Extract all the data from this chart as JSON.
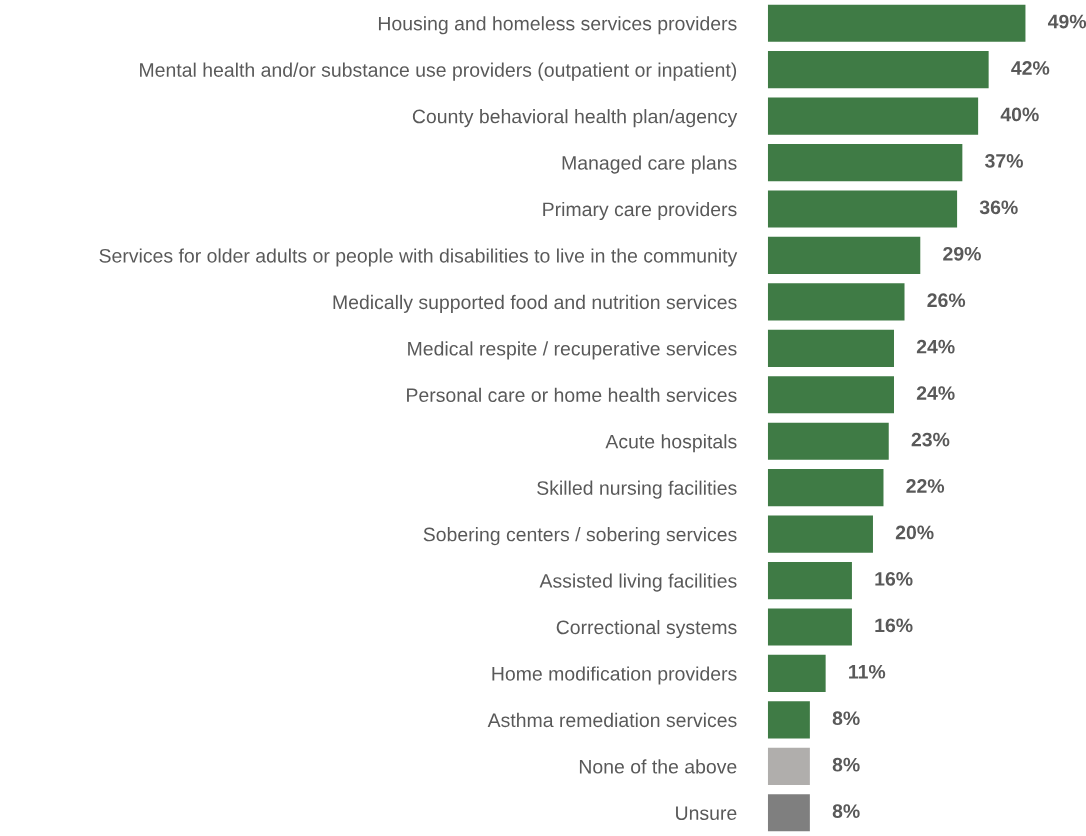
{
  "chart_data": {
    "type": "bar",
    "orientation": "horizontal",
    "categories": [
      "Housing and homeless services providers",
      "Mental health and/or substance use providers (outpatient or inpatient)",
      "County behavioral health plan/agency",
      "Managed care plans",
      "Primary care providers",
      "Services for older adults or people with disabilities to live in the community",
      "Medically supported food and nutrition services",
      "Medical respite / recuperative services",
      "Personal care or home health services",
      "Acute hospitals",
      "Skilled nursing facilities",
      "Sobering centers / sobering services",
      "Assisted living facilities",
      "Correctional systems",
      "Home modification providers",
      "Asthma remediation services",
      "None of the above",
      "Unsure"
    ],
    "values": [
      49,
      42,
      40,
      37,
      36,
      29,
      26,
      24,
      24,
      23,
      22,
      20,
      16,
      16,
      11,
      8,
      8,
      8
    ],
    "value_labels": [
      "49%",
      "42%",
      "40%",
      "37%",
      "36%",
      "29%",
      "26%",
      "24%",
      "24%",
      "23%",
      "22%",
      "20%",
      "16%",
      "16%",
      "11%",
      "8%",
      "8%",
      "8%"
    ],
    "colors": [
      "#3f7b45",
      "#3f7b45",
      "#3f7b45",
      "#3f7b45",
      "#3f7b45",
      "#3f7b45",
      "#3f7b45",
      "#3f7b45",
      "#3f7b45",
      "#3f7b45",
      "#3f7b45",
      "#3f7b45",
      "#3f7b45",
      "#3f7b45",
      "#3f7b45",
      "#3f7b45",
      "#b0aeac",
      "#7f7f7f"
    ],
    "grid": false,
    "legend": false
  }
}
